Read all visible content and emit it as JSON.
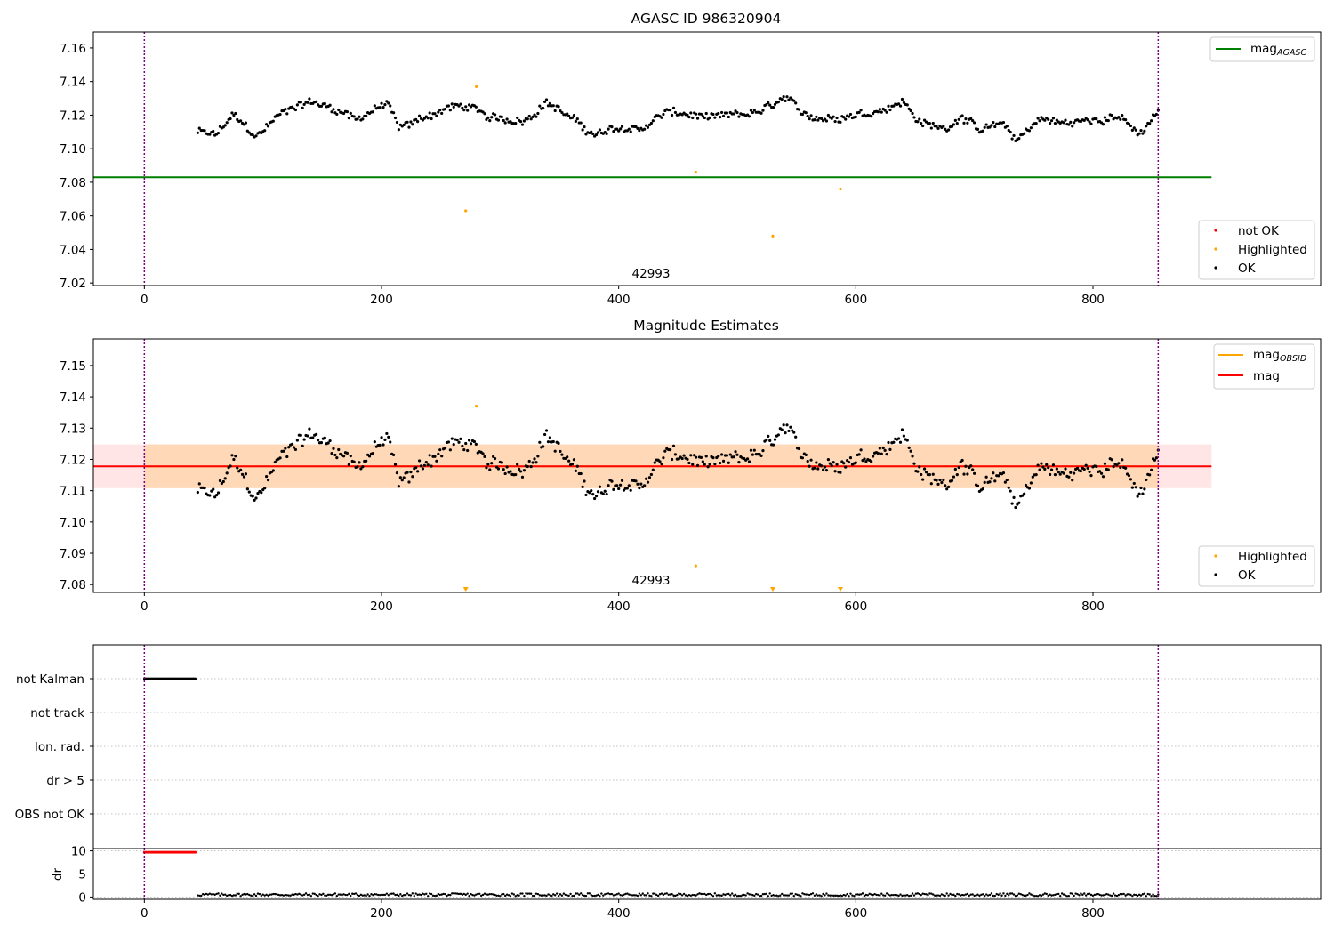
{
  "chart_data": [
    {
      "type": "scatter",
      "title": "AGASC ID 986320904",
      "xlabel": "",
      "ylabel": "",
      "xlim": [
        -43,
        992
      ],
      "ylim": [
        7.0185,
        7.1695
      ],
      "xticks": [
        0,
        200,
        400,
        600,
        800
      ],
      "xtick_labels": [
        "0",
        "200",
        "400",
        "600",
        "800"
      ],
      "yticks": [
        7.02,
        7.04,
        7.06,
        7.08,
        7.1,
        7.12,
        7.14,
        7.16
      ],
      "ytick_labels": [
        "7.02",
        "7.04",
        "7.06",
        "7.08",
        "7.10",
        "7.12",
        "7.14",
        "7.16"
      ],
      "grid": false,
      "obsid_boundaries": [
        0,
        855
      ],
      "obsid_label": {
        "x": 427,
        "text": "42993"
      },
      "hlines": [
        {
          "name": "mag_AGASC",
          "y": 7.083,
          "xmax": 900,
          "color": "#008000"
        }
      ],
      "series": [
        {
          "name": "OK",
          "color": "#000000",
          "x_start": 45,
          "x_end": 855,
          "count": 560,
          "anchors": [
            [
              45,
              7.11
            ],
            [
              60,
              7.108
            ],
            [
              75,
              7.12
            ],
            [
              95,
              7.107
            ],
            [
              110,
              7.118
            ],
            [
              125,
              7.125
            ],
            [
              140,
              7.128
            ],
            [
              160,
              7.124
            ],
            [
              180,
              7.118
            ],
            [
              205,
              7.127
            ],
            [
              215,
              7.112
            ],
            [
              240,
              7.12
            ],
            [
              260,
              7.125
            ],
            [
              275,
              7.125
            ],
            [
              290,
              7.118
            ],
            [
              320,
              7.117
            ],
            [
              340,
              7.128
            ],
            [
              360,
              7.118
            ],
            [
              380,
              7.108
            ],
            [
              400,
              7.112
            ],
            [
              420,
              7.112
            ],
            [
              440,
              7.122
            ],
            [
              460,
              7.12
            ],
            [
              480,
              7.118
            ],
            [
              500,
              7.12
            ],
            [
              520,
              7.122
            ],
            [
              540,
              7.13
            ],
            [
              555,
              7.121
            ],
            [
              575,
              7.118
            ],
            [
              595,
              7.12
            ],
            [
              615,
              7.122
            ],
            [
              640,
              7.128
            ],
            [
              655,
              7.115
            ],
            [
              675,
              7.112
            ],
            [
              690,
              7.12
            ],
            [
              705,
              7.11
            ],
            [
              725,
              7.115
            ],
            [
              735,
              7.105
            ],
            [
              755,
              7.118
            ],
            [
              775,
              7.115
            ],
            [
              800,
              7.117
            ],
            [
              820,
              7.12
            ],
            [
              840,
              7.108
            ],
            [
              855,
              7.122
            ]
          ]
        },
        {
          "name": "Highlighted",
          "color": "#ffa500",
          "points": [
            [
              271,
              7.063
            ],
            [
              280,
              7.137
            ],
            [
              465,
              7.086
            ],
            [
              530,
              7.048
            ],
            [
              587,
              7.076
            ]
          ]
        },
        {
          "name": "not OK",
          "color": "#ff0000",
          "points": []
        }
      ],
      "legends": [
        {
          "position": "upper-right",
          "entries": [
            {
              "label": "mag",
              "sub": "AGASC",
              "color": "#008000",
              "kind": "line"
            }
          ]
        },
        {
          "position": "lower-right",
          "entries": [
            {
              "label": "not OK",
              "color": "#ff0000",
              "kind": "dot"
            },
            {
              "label": "Highlighted",
              "color": "#ffa500",
              "kind": "dot"
            },
            {
              "label": "OK",
              "color": "#000000",
              "kind": "dot"
            }
          ]
        }
      ]
    },
    {
      "type": "scatter",
      "title": "Magnitude Estimates",
      "xlabel": "",
      "ylabel": "",
      "xlim": [
        -43,
        992
      ],
      "ylim": [
        7.0775,
        7.1585
      ],
      "xticks": [
        0,
        200,
        400,
        600,
        800
      ],
      "xtick_labels": [
        "0",
        "200",
        "400",
        "600",
        "800"
      ],
      "yticks": [
        7.08,
        7.09,
        7.1,
        7.11,
        7.12,
        7.13,
        7.14,
        7.15
      ],
      "ytick_labels": [
        "7.08",
        "7.09",
        "7.10",
        "7.11",
        "7.12",
        "7.13",
        "7.14",
        "7.15"
      ],
      "grid": false,
      "obsid_boundaries": [
        0,
        855
      ],
      "obsid_label": {
        "x": 427,
        "text": "42993"
      },
      "bands": [
        {
          "name": "mag_OBSID range",
          "y0": 7.1108,
          "y1": 7.1248,
          "x0": 0,
          "x1": 855,
          "color": "#ffa500"
        },
        {
          "name": "mag range",
          "y0": 7.1108,
          "y1": 7.1248,
          "x0": -43,
          "x1": 900,
          "color": "#ff0000"
        }
      ],
      "hlines": [
        {
          "name": "mag_OBSID",
          "y": 7.1178,
          "xmin": 0,
          "xmax": 855,
          "color": "#ffa500"
        },
        {
          "name": "mag",
          "y": 7.1178,
          "xmin": -43,
          "xmax": 900,
          "color": "#ff0000"
        }
      ],
      "series": [
        {
          "name": "OK",
          "color": "#000000",
          "x_start": 45,
          "x_end": 855,
          "count": 560,
          "anchors": [
            [
              45,
              7.11
            ],
            [
              60,
              7.108
            ],
            [
              75,
              7.12
            ],
            [
              95,
              7.107
            ],
            [
              110,
              7.118
            ],
            [
              125,
              7.125
            ],
            [
              140,
              7.128
            ],
            [
              160,
              7.124
            ],
            [
              180,
              7.118
            ],
            [
              205,
              7.127
            ],
            [
              215,
              7.112
            ],
            [
              240,
              7.12
            ],
            [
              260,
              7.125
            ],
            [
              275,
              7.125
            ],
            [
              290,
              7.118
            ],
            [
              320,
              7.117
            ],
            [
              340,
              7.128
            ],
            [
              360,
              7.118
            ],
            [
              380,
              7.108
            ],
            [
              400,
              7.112
            ],
            [
              420,
              7.112
            ],
            [
              440,
              7.122
            ],
            [
              460,
              7.12
            ],
            [
              480,
              7.118
            ],
            [
              500,
              7.12
            ],
            [
              520,
              7.122
            ],
            [
              540,
              7.13
            ],
            [
              555,
              7.121
            ],
            [
              575,
              7.118
            ],
            [
              595,
              7.12
            ],
            [
              615,
              7.122
            ],
            [
              640,
              7.128
            ],
            [
              655,
              7.115
            ],
            [
              675,
              7.112
            ],
            [
              690,
              7.12
            ],
            [
              705,
              7.11
            ],
            [
              725,
              7.115
            ],
            [
              735,
              7.105
            ],
            [
              755,
              7.118
            ],
            [
              775,
              7.115
            ],
            [
              800,
              7.117
            ],
            [
              820,
              7.12
            ],
            [
              840,
              7.108
            ],
            [
              855,
              7.122
            ]
          ]
        },
        {
          "name": "Highlighted",
          "color": "#ffa500",
          "points": [
            [
              280,
              7.137
            ],
            [
              465,
              7.086
            ]
          ]
        },
        {
          "name": "Highlighted (off scale)",
          "color": "#ffa500",
          "marker": "triangle-down",
          "points": [
            [
              271,
              7.0775
            ],
            [
              530,
              7.0775
            ],
            [
              587,
              7.0775
            ]
          ]
        }
      ],
      "legends": [
        {
          "position": "upper-right",
          "entries": [
            {
              "label": "mag",
              "sub": "OBSID",
              "color": "#ffa500",
              "kind": "line"
            },
            {
              "label": "mag",
              "color": "#ff0000",
              "kind": "line"
            }
          ]
        },
        {
          "position": "lower-right",
          "entries": [
            {
              "label": "Highlighted",
              "color": "#ffa500",
              "kind": "dot"
            },
            {
              "label": "OK",
              "color": "#000000",
              "kind": "dot"
            }
          ]
        }
      ]
    },
    {
      "type": "scatter",
      "title": "",
      "xlim": [
        -43,
        992
      ],
      "categories": [
        "not Kalman",
        "not track",
        "Ion. rad.",
        "dr > 5",
        "OBS not OK"
      ],
      "grid": true,
      "obsid_boundaries": [
        0,
        855
      ],
      "series": [
        {
          "name": "not Kalman",
          "color": "#000000",
          "x_start": 0,
          "x_end": 43
        }
      ]
    },
    {
      "type": "scatter",
      "title": "",
      "xlabel": "",
      "ylabel": "dr",
      "xlim": [
        -43,
        992
      ],
      "ylim": [
        -0.5,
        10.5
      ],
      "xticks": [
        0,
        200,
        400,
        600,
        800
      ],
      "xtick_labels": [
        "0",
        "200",
        "400",
        "600",
        "800"
      ],
      "yticks": [
        0,
        5,
        10
      ],
      "ytick_labels": [
        "0",
        "5",
        "10"
      ],
      "grid": true,
      "obsid_boundaries": [
        0,
        855
      ],
      "series": [
        {
          "name": "dr (not OK)",
          "color": "#ff0000",
          "x_start": 0,
          "x_end": 43,
          "value": 9.7
        },
        {
          "name": "dr",
          "color": "#000000",
          "x_start": 45,
          "x_end": 855,
          "value_range": [
            0.0,
            1.0
          ]
        }
      ]
    }
  ]
}
